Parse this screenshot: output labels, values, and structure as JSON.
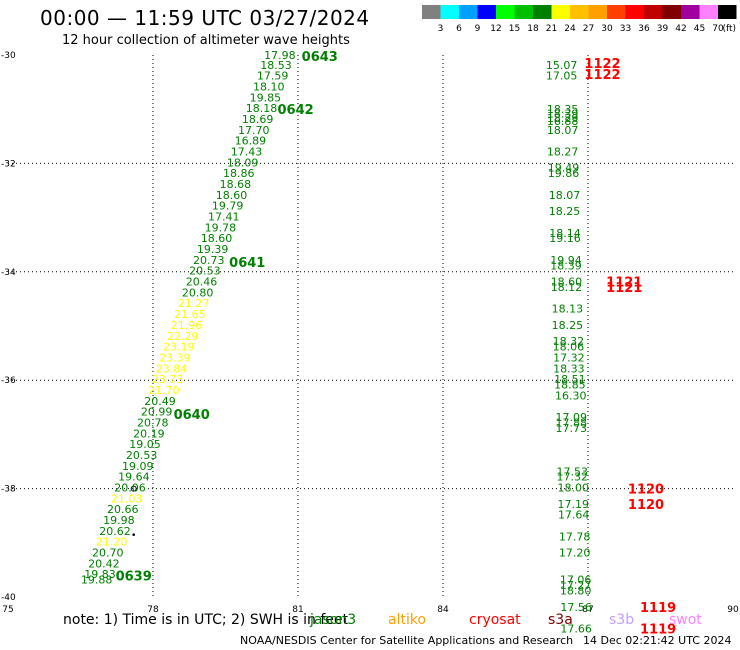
{
  "header": {
    "title": "00:00 — 11:59 UTC 03/27/2024",
    "subtitle": "12 hour collection of altimeter wave heights"
  },
  "colorbar": {
    "ticks": [
      "3",
      "6",
      "9",
      "12",
      "15",
      "18",
      "21",
      "24",
      "27",
      "30",
      "33",
      "36",
      "39",
      "42",
      "45",
      "70"
    ],
    "unit": "(ft)",
    "colors": [
      "#808080",
      "#00ffff",
      "#00a0ff",
      "#0000ff",
      "#00ff00",
      "#00c000",
      "#008000",
      "#ffff00",
      "#ffc000",
      "#ffa000",
      "#ff4000",
      "#ff0000",
      "#c00000",
      "#800000",
      "#a000a0",
      "#ff80ff",
      "#000000"
    ]
  },
  "legend": {
    "note": "note: 1) Time is in UTC; 2) SWH is in feet",
    "missions": [
      {
        "name": "jason3",
        "color": "#008000"
      },
      {
        "name": "altiko",
        "color": "#ffa000"
      },
      {
        "name": "cryosat",
        "color": "#ff0000"
      },
      {
        "name": "s3a",
        "color": "#800000"
      },
      {
        "name": "s3b",
        "color": "#c0a0ff"
      },
      {
        "name": "swot",
        "color": "#ff80ff"
      }
    ]
  },
  "footer": {
    "credit": "NOAA/NESDIS Center for Satellite Applications and Research",
    "timestamp": "14 Dec 02:21:42 UTC 2024"
  },
  "chart_data": {
    "type": "scatter",
    "title": "00:00 — 11:59 UTC 03/27/2024",
    "subtitle": "12 hour collection of altimeter wave heights",
    "xlabel": "",
    "ylabel": "",
    "xlim": [
      75,
      90
    ],
    "ylim": [
      -40,
      -30
    ],
    "xticks": [
      "75",
      "78",
      "81",
      "84",
      "87",
      "90"
    ],
    "yticks": [
      "-30",
      "-32",
      "-34",
      "-36",
      "-38",
      "-40"
    ],
    "grid": true,
    "tracks": [
      {
        "satellite": "jason3",
        "points": [
          {
            "lon": 80.95,
            "lat": -30.0,
            "swh": "17.98",
            "color": "#008000"
          },
          {
            "lon": 80.87,
            "lat": -30.18,
            "swh": "18.53",
            "color": "#008000"
          },
          {
            "lon": 80.8,
            "lat": -30.38,
            "swh": "17.59",
            "color": "#008000"
          },
          {
            "lon": 80.72,
            "lat": -30.58,
            "swh": "18.10",
            "color": "#008000"
          },
          {
            "lon": 80.65,
            "lat": -30.78,
            "swh": "19.85",
            "color": "#008000"
          },
          {
            "lon": 80.57,
            "lat": -30.98,
            "swh": "18.18",
            "color": "#008000"
          },
          {
            "lon": 80.49,
            "lat": -31.18,
            "swh": "18.69",
            "color": "#008000"
          },
          {
            "lon": 80.41,
            "lat": -31.38,
            "swh": "17.70",
            "color": "#008000"
          },
          {
            "lon": 80.34,
            "lat": -31.58,
            "swh": "16.89",
            "color": "#008000"
          },
          {
            "lon": 80.26,
            "lat": -31.78,
            "swh": "17.43",
            "color": "#008000"
          },
          {
            "lon": 80.18,
            "lat": -31.98,
            "swh": "18.09",
            "color": "#008000"
          },
          {
            "lon": 80.1,
            "lat": -32.18,
            "swh": "18.86",
            "color": "#008000"
          },
          {
            "lon": 80.03,
            "lat": -32.38,
            "swh": "18.68",
            "color": "#008000"
          },
          {
            "lon": 79.95,
            "lat": -32.58,
            "swh": "18.60",
            "color": "#008000"
          },
          {
            "lon": 79.87,
            "lat": -32.78,
            "swh": "19.79",
            "color": "#008000"
          },
          {
            "lon": 79.79,
            "lat": -32.98,
            "swh": "17.41",
            "color": "#008000"
          },
          {
            "lon": 79.72,
            "lat": -33.18,
            "swh": "19.78",
            "color": "#008000"
          },
          {
            "lon": 79.64,
            "lat": -33.38,
            "swh": "18.60",
            "color": "#008000"
          },
          {
            "lon": 79.56,
            "lat": -33.58,
            "swh": "19.39",
            "color": "#008000"
          },
          {
            "lon": 79.48,
            "lat": -33.78,
            "swh": "20.73",
            "color": "#008000"
          },
          {
            "lon": 79.4,
            "lat": -33.98,
            "swh": "20.53",
            "color": "#008000"
          },
          {
            "lon": 79.33,
            "lat": -34.18,
            "swh": "20.46",
            "color": "#008000"
          },
          {
            "lon": 79.25,
            "lat": -34.38,
            "swh": "20.80",
            "color": "#008000"
          },
          {
            "lon": 79.17,
            "lat": -34.58,
            "swh": "21.27",
            "color": "#ffff00"
          },
          {
            "lon": 79.09,
            "lat": -34.78,
            "swh": "21.65",
            "color": "#ffff00"
          },
          {
            "lon": 79.02,
            "lat": -34.98,
            "swh": "21.96",
            "color": "#ffff00"
          },
          {
            "lon": 78.94,
            "lat": -35.18,
            "swh": "22.29",
            "color": "#ffff00"
          },
          {
            "lon": 78.86,
            "lat": -35.38,
            "swh": "23.19",
            "color": "#ffff00"
          },
          {
            "lon": 78.78,
            "lat": -35.58,
            "swh": "23.39",
            "color": "#ffff00"
          },
          {
            "lon": 78.71,
            "lat": -35.78,
            "swh": "23.84",
            "color": "#ffff00"
          },
          {
            "lon": 78.63,
            "lat": -35.98,
            "swh": "23.73",
            "color": "#ffff00"
          },
          {
            "lon": 78.55,
            "lat": -36.18,
            "swh": "21.70",
            "color": "#ffff00"
          },
          {
            "lon": 78.47,
            "lat": -36.38,
            "swh": "20.49",
            "color": "#008000"
          },
          {
            "lon": 78.4,
            "lat": -36.58,
            "swh": "20.99",
            "color": "#008000"
          },
          {
            "lon": 78.32,
            "lat": -36.78,
            "swh": "20.78",
            "color": "#008000"
          },
          {
            "lon": 78.24,
            "lat": -36.98,
            "swh": "20.19",
            "color": "#008000"
          },
          {
            "lon": 78.16,
            "lat": -37.18,
            "swh": "19.05",
            "color": "#008000"
          },
          {
            "lon": 78.09,
            "lat": -37.38,
            "swh": "20.53",
            "color": "#008000"
          },
          {
            "lon": 78.01,
            "lat": -37.58,
            "swh": "19.09",
            "color": "#008000"
          },
          {
            "lon": 77.93,
            "lat": -37.78,
            "swh": "19.64",
            "color": "#008000"
          },
          {
            "lon": 77.85,
            "lat": -37.98,
            "swh": "20.06",
            "color": "#008000"
          },
          {
            "lon": 77.78,
            "lat": -38.18,
            "swh": "21.03",
            "color": "#ffff00"
          },
          {
            "lon": 77.7,
            "lat": -38.38,
            "swh": "20.66",
            "color": "#008000"
          },
          {
            "lon": 77.62,
            "lat": -38.58,
            "swh": "19.98",
            "color": "#008000"
          },
          {
            "lon": 77.54,
            "lat": -38.78,
            "swh": "20.62",
            "color": "#008000"
          },
          {
            "lon": 77.47,
            "lat": -38.98,
            "swh": "21.20",
            "color": "#ffff00"
          },
          {
            "lon": 77.39,
            "lat": -39.18,
            "swh": "20.70",
            "color": "#008000"
          },
          {
            "lon": 77.31,
            "lat": -39.38,
            "swh": "20.42",
            "color": "#008000"
          },
          {
            "lon": 77.23,
            "lat": -39.58,
            "swh": "19.83",
            "color": "#008000"
          },
          {
            "lon": 77.16,
            "lat": -39.68,
            "swh": "19.88",
            "color": "#008000"
          }
        ]
      },
      {
        "satellite": "jason3",
        "points": [
          {
            "lon": 86.78,
            "lat": -30.18,
            "swh": "15.07",
            "color": "#008000"
          },
          {
            "lon": 86.78,
            "lat": -30.38,
            "swh": "17.05",
            "color": "#008000"
          },
          {
            "lon": 86.8,
            "lat": -31.0,
            "swh": "18.35",
            "color": "#008000"
          },
          {
            "lon": 86.8,
            "lat": -31.08,
            "swh": "18.39",
            "color": "#008000"
          },
          {
            "lon": 86.8,
            "lat": -31.16,
            "swh": "18.29",
            "color": "#008000"
          },
          {
            "lon": 86.8,
            "lat": -31.22,
            "swh": "16.88",
            "color": "#008000"
          },
          {
            "lon": 86.8,
            "lat": -31.38,
            "swh": "18.07",
            "color": "#008000"
          },
          {
            "lon": 86.8,
            "lat": -31.78,
            "swh": "18.27",
            "color": "#008000"
          },
          {
            "lon": 86.82,
            "lat": -32.08,
            "swh": "19.49",
            "color": "#008000"
          },
          {
            "lon": 86.82,
            "lat": -32.18,
            "swh": "19.86",
            "color": "#008000"
          },
          {
            "lon": 86.84,
            "lat": -32.58,
            "swh": "18.07",
            "color": "#008000"
          },
          {
            "lon": 86.84,
            "lat": -32.88,
            "swh": "18.25",
            "color": "#008000"
          },
          {
            "lon": 86.85,
            "lat": -33.28,
            "swh": "18.14",
            "color": "#008000"
          },
          {
            "lon": 86.85,
            "lat": -33.38,
            "swh": "19.16",
            "color": "#008000"
          },
          {
            "lon": 86.87,
            "lat": -33.78,
            "swh": "19.94",
            "color": "#008000"
          },
          {
            "lon": 86.87,
            "lat": -33.88,
            "swh": "18.39",
            "color": "#008000"
          },
          {
            "lon": 86.88,
            "lat": -34.18,
            "swh": "18.60",
            "color": "#008000"
          },
          {
            "lon": 86.88,
            "lat": -34.28,
            "swh": "18.12",
            "color": "#008000"
          },
          {
            "lon": 86.9,
            "lat": -34.68,
            "swh": "18.13",
            "color": "#008000"
          },
          {
            "lon": 86.9,
            "lat": -34.98,
            "swh": "18.25",
            "color": "#008000"
          },
          {
            "lon": 86.92,
            "lat": -35.28,
            "swh": "18.32",
            "color": "#008000"
          },
          {
            "lon": 86.92,
            "lat": -35.38,
            "swh": "18.06",
            "color": "#008000"
          },
          {
            "lon": 86.93,
            "lat": -35.58,
            "swh": "17.32",
            "color": "#008000"
          },
          {
            "lon": 86.93,
            "lat": -35.78,
            "swh": "18.33",
            "color": "#008000"
          },
          {
            "lon": 86.95,
            "lat": -35.98,
            "swh": "18.51",
            "color": "#008000"
          },
          {
            "lon": 86.95,
            "lat": -36.08,
            "swh": "18.85",
            "color": "#008000"
          },
          {
            "lon": 86.97,
            "lat": -36.28,
            "swh": "16.30",
            "color": "#008000"
          },
          {
            "lon": 86.98,
            "lat": -36.68,
            "swh": "17.09",
            "color": "#008000"
          },
          {
            "lon": 86.98,
            "lat": -36.78,
            "swh": "17.88",
            "color": "#008000"
          },
          {
            "lon": 86.98,
            "lat": -36.88,
            "swh": "17.73",
            "color": "#008000"
          },
          {
            "lon": 87.0,
            "lat": -37.68,
            "swh": "17.53",
            "color": "#008000"
          },
          {
            "lon": 87.0,
            "lat": -37.78,
            "swh": "17.32",
            "color": "#008000"
          },
          {
            "lon": 87.02,
            "lat": -37.98,
            "swh": "18.00",
            "color": "#008000"
          },
          {
            "lon": 87.02,
            "lat": -38.28,
            "swh": "17.19",
            "color": "#008000"
          },
          {
            "lon": 87.03,
            "lat": -38.48,
            "swh": "17.64",
            "color": "#008000"
          },
          {
            "lon": 87.05,
            "lat": -38.88,
            "swh": "17.78",
            "color": "#008000"
          },
          {
            "lon": 87.05,
            "lat": -39.18,
            "swh": "17.20",
            "color": "#008000"
          },
          {
            "lon": 87.07,
            "lat": -39.68,
            "swh": "17.06",
            "color": "#008000"
          },
          {
            "lon": 87.07,
            "lat": -39.78,
            "swh": "17.27",
            "color": "#008000"
          },
          {
            "lon": 87.07,
            "lat": -39.88,
            "swh": "18.80",
            "color": "#008000"
          },
          {
            "lon": 87.08,
            "lat": -40.18,
            "swh": "17.56",
            "color": "#008000"
          },
          {
            "lon": 87.08,
            "lat": -40.58,
            "swh": "17.66",
            "color": "#008000"
          }
        ]
      }
    ],
    "time_labels": [
      {
        "text": "0643",
        "lon": 81.45,
        "lat": -30.02,
        "color": "#008000"
      },
      {
        "text": "0642",
        "lon": 80.95,
        "lat": -31.0,
        "color": "#008000"
      },
      {
        "text": "0641",
        "lon": 79.95,
        "lat": -33.82,
        "color": "#008000"
      },
      {
        "text": "0640",
        "lon": 78.8,
        "lat": -36.62,
        "color": "#008000"
      },
      {
        "text": "0639",
        "lon": 77.6,
        "lat": -39.6,
        "color": "#008000"
      },
      {
        "text": "1122",
        "lon": 87.3,
        "lat": -30.15,
        "color": "#ff0000"
      },
      {
        "text": "1122",
        "lon": 87.3,
        "lat": -30.35,
        "color": "#ff0000"
      },
      {
        "text": "1121",
        "lon": 87.75,
        "lat": -34.18,
        "color": "#ff0000"
      },
      {
        "text": "1121",
        "lon": 87.75,
        "lat": -34.28,
        "color": "#ff0000"
      },
      {
        "text": "1120",
        "lon": 88.2,
        "lat": -38.0,
        "color": "#ff0000"
      },
      {
        "text": "1120",
        "lon": 88.2,
        "lat": -38.28,
        "color": "#ff0000"
      },
      {
        "text": "1119",
        "lon": 88.45,
        "lat": -40.18,
        "color": "#ff0000"
      },
      {
        "text": "1119",
        "lon": 88.45,
        "lat": -40.58,
        "color": "#ff0000"
      }
    ],
    "markers": [
      {
        "lon": 77.6,
        "lat": -38.0,
        "shape": "ring"
      },
      {
        "lon": 77.6,
        "lat": -38.85,
        "shape": "dot"
      }
    ]
  }
}
